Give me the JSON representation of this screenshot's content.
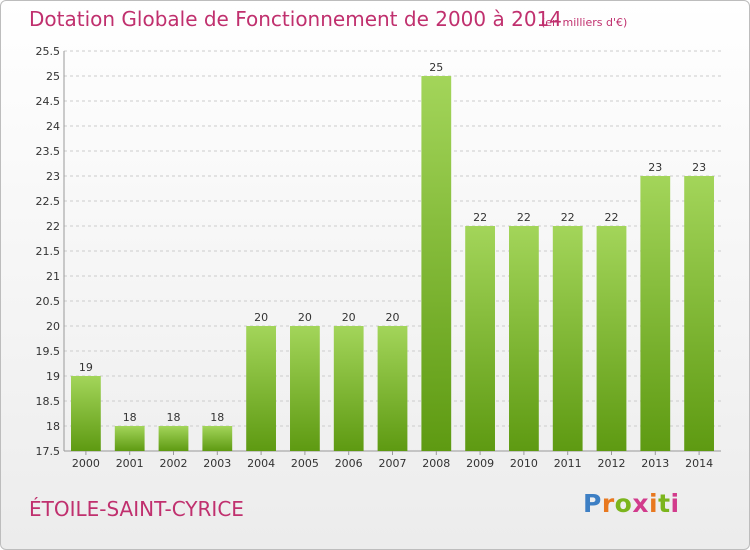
{
  "chart_data": {
    "type": "bar",
    "title": "Dotation Globale de Fonctionnement de 2000 à 2014",
    "subtitle": "(en milliers d'€)",
    "categories": [
      "2000",
      "2001",
      "2002",
      "2003",
      "2004",
      "2005",
      "2006",
      "2007",
      "2008",
      "2009",
      "2010",
      "2011",
      "2012",
      "2013",
      "2014"
    ],
    "values": [
      19,
      18,
      18,
      18,
      20,
      20,
      20,
      20,
      25,
      22,
      22,
      22,
      22,
      23,
      23
    ],
    "ylim": [
      17.5,
      25.5
    ],
    "yticks": [
      17.5,
      18,
      18.5,
      19,
      19.5,
      20,
      20.5,
      21,
      21.5,
      22,
      22.5,
      23,
      23.5,
      24,
      24.5,
      25,
      25.5
    ],
    "xlabel": "",
    "ylabel": "",
    "grid": true,
    "bar_color": "#7ab51d"
  },
  "footer": {
    "commune": "ÉTOILE-SAINT-CYRICE",
    "logo": "Proxiti"
  },
  "colors": {
    "title": "#c0306e",
    "bar_top": "#a3d55a",
    "bar_bottom": "#5e9a12"
  }
}
